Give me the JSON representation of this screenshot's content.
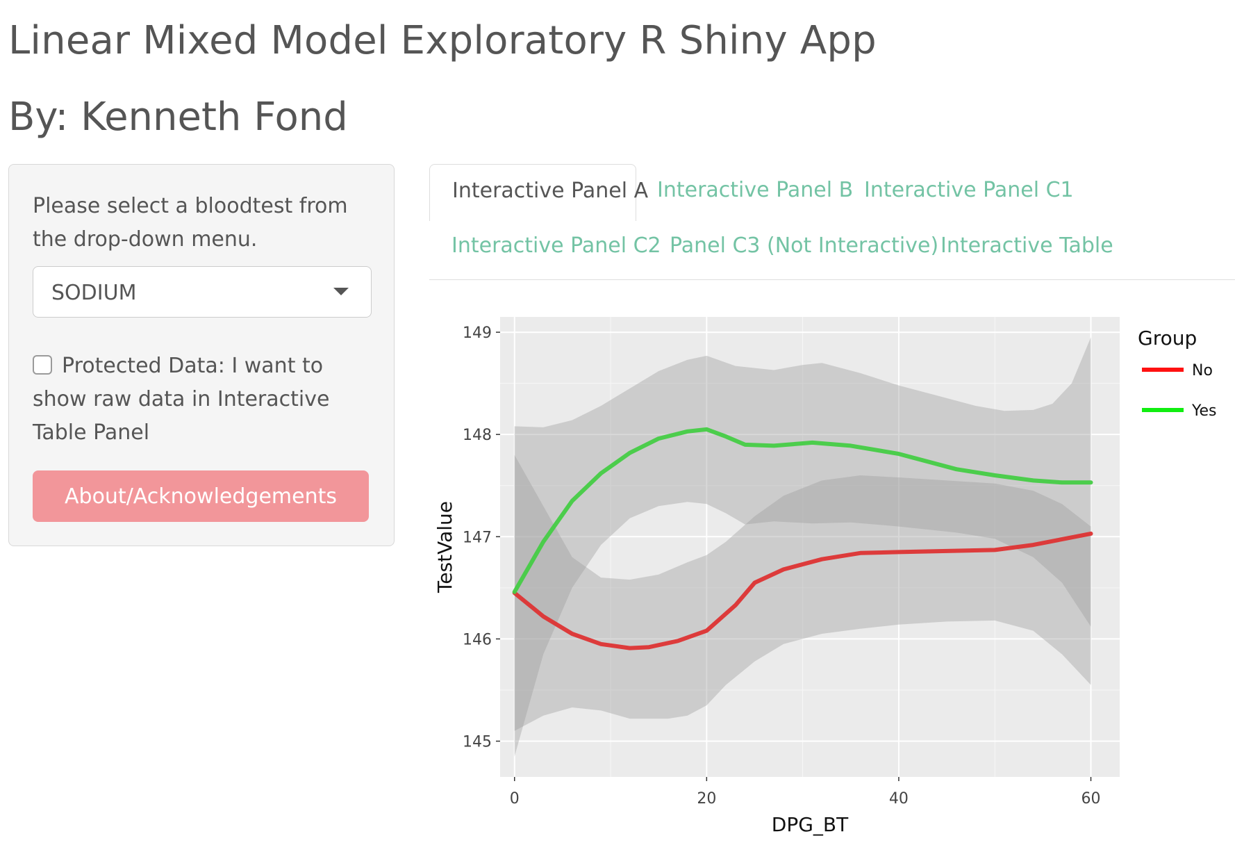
{
  "app": {
    "title": "Linear Mixed Model Exploratory R Shiny App",
    "author": "By: Kenneth Fond"
  },
  "sidebar": {
    "prompt": "Please select a bloodtest from the drop-down menu.",
    "select_value": "SODIUM",
    "checkbox_checked": false,
    "checkbox_label": "Protected Data: I want to show raw data in Interactive Table Panel",
    "about_button": "About/Acknowledgements"
  },
  "tabs": [
    {
      "label": "Interactive Panel A",
      "active": true
    },
    {
      "label": "Interactive Panel B",
      "active": false
    },
    {
      "label": "Interactive Panel C1",
      "active": false
    },
    {
      "label": "Interactive Panel C2",
      "active": false
    },
    {
      "label": "Panel C3 (Not Interactive)",
      "active": false
    },
    {
      "label": "Interactive Table",
      "active": false
    }
  ],
  "colors": {
    "accent_tab": "#73c3a4",
    "button": "#f2969a",
    "panel_bg": "#ebebeb",
    "ribbon": "#bdbdbd"
  },
  "chart_data": {
    "type": "line",
    "title": "",
    "xlabel": "DPG_BT",
    "ylabel": "TestValue",
    "xlim": [
      -1.5,
      63
    ],
    "ylim": [
      144.65,
      149.15
    ],
    "xticks": [
      0,
      20,
      40,
      60
    ],
    "yticks": [
      145,
      146,
      147,
      148,
      149
    ],
    "grid": true,
    "legend": {
      "title": "Group",
      "position": "right"
    },
    "series": [
      {
        "name": "No",
        "color": "#dd3333",
        "legend_color": "#ff1111",
        "points": [
          [
            0,
            146.45
          ],
          [
            3,
            146.22
          ],
          [
            6,
            146.05
          ],
          [
            9,
            145.95
          ],
          [
            12,
            145.91
          ],
          [
            14,
            145.92
          ],
          [
            17,
            145.98
          ],
          [
            20,
            146.08
          ],
          [
            23,
            146.33
          ],
          [
            25,
            146.55
          ],
          [
            28,
            146.68
          ],
          [
            32,
            146.78
          ],
          [
            36,
            146.84
          ],
          [
            40,
            146.85
          ],
          [
            45,
            146.86
          ],
          [
            50,
            146.87
          ],
          [
            54,
            146.92
          ],
          [
            60,
            147.03
          ]
        ],
        "ci_upper": [
          [
            0,
            147.8
          ],
          [
            3,
            147.3
          ],
          [
            6,
            146.8
          ],
          [
            9,
            146.6
          ],
          [
            12,
            146.58
          ],
          [
            15,
            146.63
          ],
          [
            18,
            146.75
          ],
          [
            20,
            146.82
          ],
          [
            22,
            146.95
          ],
          [
            25,
            147.2
          ],
          [
            28,
            147.4
          ],
          [
            32,
            147.55
          ],
          [
            36,
            147.6
          ],
          [
            40,
            147.58
          ],
          [
            45,
            147.55
          ],
          [
            50,
            147.52
          ],
          [
            54,
            147.45
          ],
          [
            57,
            147.32
          ],
          [
            60,
            147.1
          ]
        ],
        "ci_lower": [
          [
            0,
            145.1
          ],
          [
            3,
            145.25
          ],
          [
            6,
            145.33
          ],
          [
            9,
            145.3
          ],
          [
            12,
            145.22
          ],
          [
            16,
            145.22
          ],
          [
            18,
            145.25
          ],
          [
            20,
            145.35
          ],
          [
            22,
            145.55
          ],
          [
            25,
            145.78
          ],
          [
            28,
            145.95
          ],
          [
            32,
            146.05
          ],
          [
            36,
            146.1
          ],
          [
            40,
            146.14
          ],
          [
            45,
            146.17
          ],
          [
            50,
            146.18
          ],
          [
            54,
            146.08
          ],
          [
            57,
            145.85
          ],
          [
            60,
            145.55
          ]
        ]
      },
      {
        "name": "Yes",
        "color": "#44cc44",
        "legend_color": "#11ee11",
        "points": [
          [
            0,
            146.46
          ],
          [
            3,
            146.95
          ],
          [
            6,
            147.35
          ],
          [
            9,
            147.62
          ],
          [
            12,
            147.82
          ],
          [
            15,
            147.96
          ],
          [
            18,
            148.03
          ],
          [
            20,
            148.05
          ],
          [
            22,
            147.98
          ],
          [
            24,
            147.9
          ],
          [
            27,
            147.89
          ],
          [
            31,
            147.92
          ],
          [
            35,
            147.89
          ],
          [
            40,
            147.81
          ],
          [
            46,
            147.66
          ],
          [
            50,
            147.6
          ],
          [
            54,
            147.55
          ],
          [
            57,
            147.53
          ],
          [
            60,
            147.53
          ]
        ],
        "ci_upper": [
          [
            0,
            148.08
          ],
          [
            3,
            148.07
          ],
          [
            6,
            148.14
          ],
          [
            9,
            148.28
          ],
          [
            12,
            148.45
          ],
          [
            15,
            148.62
          ],
          [
            18,
            148.73
          ],
          [
            20,
            148.77
          ],
          [
            23,
            148.67
          ],
          [
            27,
            148.63
          ],
          [
            30,
            148.68
          ],
          [
            32,
            148.7
          ],
          [
            36,
            148.6
          ],
          [
            40,
            148.48
          ],
          [
            44,
            148.38
          ],
          [
            48,
            148.28
          ],
          [
            51,
            148.23
          ],
          [
            54,
            148.24
          ],
          [
            56,
            148.3
          ],
          [
            58,
            148.5
          ],
          [
            60,
            148.95
          ]
        ],
        "ci_lower": [
          [
            0,
            144.85
          ],
          [
            3,
            145.85
          ],
          [
            6,
            146.5
          ],
          [
            9,
            146.92
          ],
          [
            12,
            147.18
          ],
          [
            15,
            147.3
          ],
          [
            18,
            147.34
          ],
          [
            20,
            147.32
          ],
          [
            22,
            147.23
          ],
          [
            24,
            147.12
          ],
          [
            27,
            147.15
          ],
          [
            31,
            147.13
          ],
          [
            35,
            147.14
          ],
          [
            40,
            147.1
          ],
          [
            46,
            147.04
          ],
          [
            50,
            146.98
          ],
          [
            54,
            146.8
          ],
          [
            57,
            146.55
          ],
          [
            60,
            146.12
          ]
        ]
      }
    ]
  }
}
